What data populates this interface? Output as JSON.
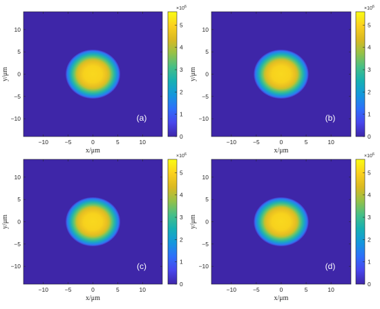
{
  "chart_data": [
    {
      "type": "heatmap",
      "panel_label": "(a)",
      "xlabel": "x/μm",
      "ylabel": "y/μm",
      "xlim": [
        -14,
        14
      ],
      "ylim": [
        -14,
        14
      ],
      "xticks": [
        "-10",
        "-5",
        "0",
        "5",
        "10"
      ],
      "yticks": [
        "10",
        "5",
        "0",
        "-5",
        "-10"
      ],
      "peak": 5500000.0,
      "center": [
        0,
        0
      ],
      "plateau_radius": 3.3,
      "edge_radius": 5.5,
      "colorbar": {
        "min": 0,
        "max": 5.6,
        "ticks": [
          "5",
          "4",
          "3",
          "2",
          "1",
          "0"
        ],
        "exponent": "×10^6"
      }
    },
    {
      "type": "heatmap",
      "panel_label": "(b)",
      "xlabel": "x/μm",
      "ylabel": "y/μm",
      "xlim": [
        -14,
        14
      ],
      "ylim": [
        -14,
        14
      ],
      "xticks": [
        "-10",
        "-5",
        "0",
        "5",
        "10"
      ],
      "yticks": [
        "10",
        "5",
        "0",
        "-5",
        "-10"
      ],
      "peak": 5500000.0,
      "center": [
        0,
        0
      ],
      "plateau_radius": 3.3,
      "edge_radius": 5.5,
      "colorbar": {
        "min": 0,
        "max": 5.6,
        "ticks": [
          "5",
          "4",
          "3",
          "2",
          "1",
          "0"
        ],
        "exponent": "×10^6"
      }
    },
    {
      "type": "heatmap",
      "panel_label": "(c)",
      "xlabel": "x/μm",
      "ylabel": "y/μm",
      "xlim": [
        -14,
        14
      ],
      "ylim": [
        -14,
        14
      ],
      "xticks": [
        "-10",
        "-5",
        "0",
        "5",
        "10"
      ],
      "yticks": [
        "10",
        "5",
        "0",
        "-5",
        "-10"
      ],
      "peak": 5500000.0,
      "center": [
        0,
        0
      ],
      "plateau_radius": 3.3,
      "edge_radius": 5.5,
      "colorbar": {
        "min": 0,
        "max": 5.6,
        "ticks": [
          "5",
          "4",
          "3",
          "2",
          "1",
          "0"
        ],
        "exponent": "×10^6"
      }
    },
    {
      "type": "heatmap",
      "panel_label": "(d)",
      "xlabel": "x/μm",
      "ylabel": "y/μm",
      "xlim": [
        -14,
        14
      ],
      "ylim": [
        -14,
        14
      ],
      "xticks": [
        "-10",
        "-5",
        "0",
        "5",
        "10"
      ],
      "yticks": [
        "10",
        "5",
        "0",
        "-5",
        "-10"
      ],
      "peak": 5500000.0,
      "center": [
        0,
        0
      ],
      "plateau_radius": 3.3,
      "edge_radius": 5.5,
      "colorbar": {
        "min": 0,
        "max": 5.6,
        "ticks": [
          "5",
          "4",
          "3",
          "2",
          "1",
          "0"
        ],
        "exponent": "×10^6"
      }
    }
  ],
  "colors": {
    "parula_stops": [
      "#3e26a8",
      "#4846ec",
      "#2e6ffa",
      "#1497dd",
      "#16b0b3",
      "#45bf87",
      "#95c148",
      "#dab921",
      "#fbd11e",
      "#f9fb14"
    ]
  }
}
